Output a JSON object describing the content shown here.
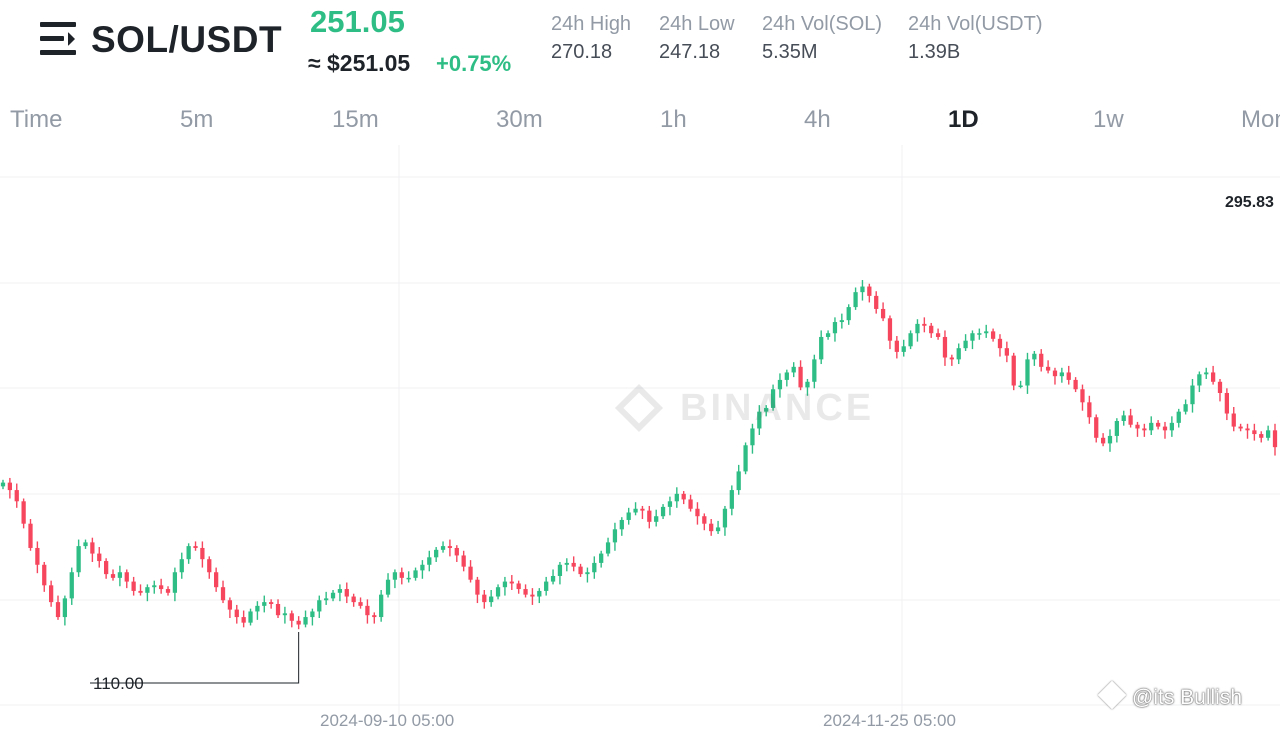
{
  "header": {
    "pair": "SOL/USDT",
    "last_price": "251.05",
    "usd_price": "≈ $251.05",
    "change": "+0.75%",
    "stats": [
      {
        "label": "24h High",
        "value": "270.18"
      },
      {
        "label": "24h Low",
        "value": "247.18"
      },
      {
        "label": "24h Vol(SOL)",
        "value": "5.35M"
      },
      {
        "label": "24h Vol(USDT)",
        "value": "1.39B"
      }
    ]
  },
  "tabs": [
    "Time",
    "5m",
    "15m",
    "30m",
    "1h",
    "4h",
    "1D",
    "1w",
    "Mon"
  ],
  "active_tab": "1D",
  "chart": {
    "high_marker": "295.83",
    "low_marker": "110.00",
    "watermark": "BINANCE",
    "x_labels": [
      "2024-09-10 05:00",
      "2024-11-25 05:00"
    ],
    "credit": "@its Bullish"
  },
  "colors": {
    "up": "#2ebd85",
    "down": "#f6465d",
    "text": "#1e2329",
    "muted": "#929aa5"
  },
  "icons": {
    "menu": "menu-lines-icon",
    "logo": "binance-diamond-icon"
  },
  "chart_data": {
    "type": "candlestick",
    "interval": "1D",
    "y_markers": {
      "high": 295.83,
      "low": 110.0
    },
    "x_tick_labels": [
      "2024-09-10 05:00",
      "2024-11-25 05:00"
    ],
    "close_approx": [
      190,
      186,
      180,
      168,
      155,
      146,
      135,
      126,
      118,
      128,
      142,
      156,
      158,
      152,
      148,
      141,
      139,
      142,
      137,
      132,
      131,
      134,
      135,
      133,
      131,
      142,
      149,
      156,
      155,
      149,
      142,
      134,
      127,
      122,
      118,
      115,
      121,
      124,
      126,
      125,
      119,
      120,
      116,
      114,
      118,
      121,
      127,
      128,
      131,
      133,
      129,
      126,
      124,
      119,
      118,
      130,
      138,
      142,
      139,
      139,
      143,
      146,
      150,
      154,
      156,
      155,
      151,
      145,
      138,
      130,
      126,
      129,
      134,
      137,
      136,
      133,
      130,
      129,
      132,
      137,
      140,
      146,
      147,
      145,
      141,
      142,
      147,
      152,
      158,
      165,
      170,
      174,
      176,
      175,
      169,
      172,
      177,
      180,
      184,
      181,
      176,
      172,
      168,
      164,
      166,
      176,
      186,
      196,
      210,
      219,
      228,
      230,
      240,
      245,
      249,
      252,
      241,
      244,
      256,
      268,
      270,
      276,
      277,
      284,
      292,
      295,
      290,
      283,
      278,
      266,
      260,
      263,
      270,
      275,
      274,
      270,
      268,
      257,
      256,
      262,
      266,
      270,
      270,
      271,
      267,
      262,
      258,
      242,
      242,
      256,
      259,
      252,
      250,
      247,
      249,
      245,
      240,
      233,
      225,
      214,
      211,
      215,
      223,
      226,
      221,
      219,
      218,
      222,
      220,
      218,
      222,
      228,
      232,
      242,
      248,
      249,
      244,
      238,
      227,
      220,
      219,
      218,
      216,
      214,
      218,
      209
    ]
  }
}
